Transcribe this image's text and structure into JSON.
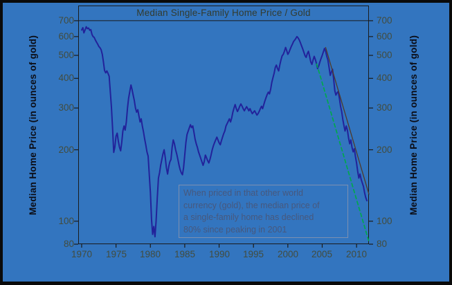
{
  "theme": {
    "frame_color": "#0a0a0a",
    "canvas_background": "#3375BF",
    "axis_line_color": "#1a1a1a",
    "tick_label_color": "#424c3e",
    "title_color": "#333b2e",
    "axis_title_color": "#0b0d16",
    "annotation_text_color": "#47587d",
    "annotation_border_color": "#7d90b0"
  },
  "chart_data": {
    "type": "line",
    "title": "Median Single-Family Home Price / Gold",
    "ylabel_left": "Median Home Price (in ounces of gold)",
    "ylabel_right": "Median Home Price (in ounces of gold)",
    "x_axis": {
      "domain": [
        1969.5,
        2011.8
      ],
      "ticks": [
        1970,
        1975,
        1980,
        1985,
        1990,
        1995,
        2000,
        2005,
        2010
      ]
    },
    "y_axis": {
      "scale": "log",
      "domain": [
        80,
        811
      ],
      "ticks": [
        700,
        600,
        500,
        400,
        300,
        200,
        100,
        80
      ],
      "grid": false
    },
    "series": [
      {
        "name": "median-home-price-in-gold",
        "color": "#22229a",
        "width": 2,
        "dash": "",
        "points": [
          [
            1970.0,
            640
          ],
          [
            1970.17,
            654
          ],
          [
            1970.33,
            622
          ],
          [
            1970.5,
            640
          ],
          [
            1970.67,
            660
          ],
          [
            1970.83,
            648
          ],
          [
            1971.0,
            652
          ],
          [
            1971.17,
            638
          ],
          [
            1971.33,
            642
          ],
          [
            1971.5,
            612
          ],
          [
            1971.67,
            600
          ],
          [
            1971.83,
            595
          ],
          [
            1972.0,
            580
          ],
          [
            1972.17,
            568
          ],
          [
            1972.33,
            558
          ],
          [
            1972.5,
            545
          ],
          [
            1972.67,
            538
          ],
          [
            1972.83,
            528
          ],
          [
            1973.0,
            505
          ],
          [
            1973.17,
            470
          ],
          [
            1973.33,
            432
          ],
          [
            1973.5,
            422
          ],
          [
            1973.67,
            430
          ],
          [
            1973.83,
            420
          ],
          [
            1974.0,
            408
          ],
          [
            1974.17,
            350
          ],
          [
            1974.33,
            302
          ],
          [
            1974.5,
            248
          ],
          [
            1974.67,
            195
          ],
          [
            1974.83,
            205
          ],
          [
            1975.0,
            228
          ],
          [
            1975.17,
            235
          ],
          [
            1975.33,
            218
          ],
          [
            1975.5,
            205
          ],
          [
            1975.67,
            198
          ],
          [
            1975.83,
            215
          ],
          [
            1976.0,
            240
          ],
          [
            1976.17,
            252
          ],
          [
            1976.33,
            242
          ],
          [
            1976.5,
            262
          ],
          [
            1976.67,
            300
          ],
          [
            1976.83,
            330
          ],
          [
            1977.0,
            352
          ],
          [
            1977.17,
            375
          ],
          [
            1977.33,
            360
          ],
          [
            1977.5,
            340
          ],
          [
            1977.67,
            322
          ],
          [
            1977.83,
            300
          ],
          [
            1978.0,
            288
          ],
          [
            1978.17,
            295
          ],
          [
            1978.33,
            278
          ],
          [
            1978.5,
            262
          ],
          [
            1978.67,
            270
          ],
          [
            1978.83,
            252
          ],
          [
            1979.0,
            238
          ],
          [
            1979.17,
            222
          ],
          [
            1979.33,
            210
          ],
          [
            1979.5,
            196
          ],
          [
            1979.67,
            188
          ],
          [
            1979.83,
            158
          ],
          [
            1980.0,
            132
          ],
          [
            1980.17,
            102
          ],
          [
            1980.33,
            88
          ],
          [
            1980.5,
            95
          ],
          [
            1980.67,
            86
          ],
          [
            1980.83,
            100
          ],
          [
            1981.0,
            125
          ],
          [
            1981.17,
            152
          ],
          [
            1981.33,
            160
          ],
          [
            1981.5,
            172
          ],
          [
            1981.67,
            182
          ],
          [
            1981.83,
            192
          ],
          [
            1982.0,
            200
          ],
          [
            1982.17,
            185
          ],
          [
            1982.33,
            168
          ],
          [
            1982.5,
            158
          ],
          [
            1982.67,
            170
          ],
          [
            1982.83,
            178
          ],
          [
            1983.0,
            182
          ],
          [
            1983.17,
            205
          ],
          [
            1983.33,
            220
          ],
          [
            1983.5,
            212
          ],
          [
            1983.67,
            200
          ],
          [
            1983.83,
            192
          ],
          [
            1984.0,
            182
          ],
          [
            1984.17,
            172
          ],
          [
            1984.33,
            165
          ],
          [
            1984.5,
            160
          ],
          [
            1984.67,
            157
          ],
          [
            1984.83,
            168
          ],
          [
            1985.0,
            190
          ],
          [
            1985.17,
            215
          ],
          [
            1985.33,
            232
          ],
          [
            1985.5,
            240
          ],
          [
            1985.67,
            248
          ],
          [
            1985.83,
            255
          ],
          [
            1986.0,
            248
          ],
          [
            1986.17,
            252
          ],
          [
            1986.33,
            238
          ],
          [
            1986.5,
            222
          ],
          [
            1986.67,
            212
          ],
          [
            1986.83,
            205
          ],
          [
            1987.0,
            196
          ],
          [
            1987.17,
            190
          ],
          [
            1987.33,
            184
          ],
          [
            1987.5,
            178
          ],
          [
            1987.67,
            172
          ],
          [
            1987.83,
            178
          ],
          [
            1988.0,
            190
          ],
          [
            1988.17,
            185
          ],
          [
            1988.33,
            180
          ],
          [
            1988.5,
            176
          ],
          [
            1988.67,
            182
          ],
          [
            1988.83,
            190
          ],
          [
            1989.0,
            200
          ],
          [
            1989.17,
            208
          ],
          [
            1989.33,
            214
          ],
          [
            1989.5,
            220
          ],
          [
            1989.67,
            226
          ],
          [
            1989.83,
            220
          ],
          [
            1990.0,
            214
          ],
          [
            1990.17,
            210
          ],
          [
            1990.33,
            218
          ],
          [
            1990.5,
            226
          ],
          [
            1990.67,
            234
          ],
          [
            1990.83,
            240
          ],
          [
            1991.0,
            252
          ],
          [
            1991.17,
            258
          ],
          [
            1991.33,
            264
          ],
          [
            1991.5,
            270
          ],
          [
            1991.67,
            262
          ],
          [
            1991.83,
            272
          ],
          [
            1992.0,
            288
          ],
          [
            1992.17,
            300
          ],
          [
            1992.33,
            310
          ],
          [
            1992.5,
            298
          ],
          [
            1992.67,
            290
          ],
          [
            1992.83,
            296
          ],
          [
            1993.0,
            305
          ],
          [
            1993.17,
            312
          ],
          [
            1993.33,
            306
          ],
          [
            1993.5,
            298
          ],
          [
            1993.67,
            292
          ],
          [
            1993.83,
            298
          ],
          [
            1994.0,
            304
          ],
          [
            1994.17,
            298
          ],
          [
            1994.33,
            292
          ],
          [
            1994.5,
            298
          ],
          [
            1994.67,
            290
          ],
          [
            1994.83,
            284
          ],
          [
            1995.0,
            288
          ],
          [
            1995.17,
            292
          ],
          [
            1995.33,
            286
          ],
          [
            1995.5,
            280
          ],
          [
            1995.67,
            284
          ],
          [
            1995.83,
            290
          ],
          [
            1996.0,
            298
          ],
          [
            1996.17,
            305
          ],
          [
            1996.33,
            298
          ],
          [
            1996.5,
            310
          ],
          [
            1996.67,
            322
          ],
          [
            1996.83,
            332
          ],
          [
            1997.0,
            342
          ],
          [
            1997.17,
            350
          ],
          [
            1997.33,
            344
          ],
          [
            1997.5,
            360
          ],
          [
            1997.67,
            385
          ],
          [
            1997.83,
            402
          ],
          [
            1998.0,
            420
          ],
          [
            1998.17,
            445
          ],
          [
            1998.33,
            455
          ],
          [
            1998.5,
            440
          ],
          [
            1998.67,
            430
          ],
          [
            1998.83,
            455
          ],
          [
            1999.0,
            478
          ],
          [
            1999.17,
            498
          ],
          [
            1999.33,
            505
          ],
          [
            1999.5,
            520
          ],
          [
            1999.67,
            540
          ],
          [
            1999.83,
            525
          ],
          [
            2000.0,
            505
          ],
          [
            2000.17,
            515
          ],
          [
            2000.33,
            530
          ],
          [
            2000.5,
            545
          ],
          [
            2000.67,
            558
          ],
          [
            2000.83,
            572
          ],
          [
            2001.0,
            580
          ],
          [
            2001.17,
            590
          ],
          [
            2001.33,
            600
          ],
          [
            2001.5,
            592
          ],
          [
            2001.67,
            580
          ],
          [
            2001.83,
            565
          ],
          [
            2002.0,
            548
          ],
          [
            2002.17,
            532
          ],
          [
            2002.33,
            515
          ],
          [
            2002.5,
            498
          ],
          [
            2002.67,
            490
          ],
          [
            2002.83,
            508
          ],
          [
            2003.0,
            520
          ],
          [
            2003.17,
            495
          ],
          [
            2003.33,
            470
          ],
          [
            2003.5,
            458
          ],
          [
            2003.67,
            478
          ],
          [
            2003.83,
            495
          ],
          [
            2004.0,
            480
          ],
          [
            2004.17,
            462
          ],
          [
            2004.33,
            440
          ],
          [
            2004.5,
            452
          ],
          [
            2004.67,
            470
          ],
          [
            2004.83,
            485
          ],
          [
            2005.0,
            500
          ],
          [
            2005.17,
            518
          ],
          [
            2005.33,
            535
          ],
          [
            2005.5,
            520
          ],
          [
            2005.67,
            495
          ],
          [
            2005.83,
            478
          ],
          [
            2006.0,
            445
          ],
          [
            2006.17,
            412
          ],
          [
            2006.33,
            425
          ],
          [
            2006.5,
            437
          ],
          [
            2006.67,
            395
          ],
          [
            2006.83,
            355
          ],
          [
            2007.0,
            340
          ],
          [
            2007.17,
            348
          ],
          [
            2007.33,
            352
          ],
          [
            2007.5,
            330
          ],
          [
            2007.67,
            305
          ],
          [
            2007.83,
            290
          ],
          [
            2008.0,
            268
          ],
          [
            2008.17,
            252
          ],
          [
            2008.33,
            240
          ],
          [
            2008.5,
            252
          ],
          [
            2008.67,
            242
          ],
          [
            2008.83,
            225
          ],
          [
            2009.0,
            212
          ],
          [
            2009.17,
            220
          ],
          [
            2009.33,
            205
          ],
          [
            2009.5,
            196
          ],
          [
            2009.67,
            202
          ],
          [
            2009.83,
            188
          ],
          [
            2010.0,
            176
          ],
          [
            2010.17,
            162
          ],
          [
            2010.33,
            152
          ],
          [
            2010.5,
            158
          ],
          [
            2010.67,
            150
          ],
          [
            2011.0,
            140
          ],
          [
            2011.17,
            132
          ],
          [
            2011.33,
            126
          ],
          [
            2011.5,
            122
          ]
        ]
      },
      {
        "name": "channel-upper-trendline",
        "color": "#4f3a2c",
        "width": 1.3,
        "dash": "",
        "points": [
          [
            2005.5,
            540
          ],
          [
            2011.8,
            130
          ]
        ]
      },
      {
        "name": "channel-lower-trendline",
        "color": "#00a84e",
        "width": 1.7,
        "dash": "5,4",
        "points": [
          [
            2004.2,
            460
          ],
          [
            2011.8,
            82
          ]
        ]
      }
    ],
    "annotation": {
      "lines": [
        "When priced in that other world",
        "currency (gold), the median price of",
        "a single-family home has declined",
        "80% since peaking in 2001"
      ]
    }
  }
}
